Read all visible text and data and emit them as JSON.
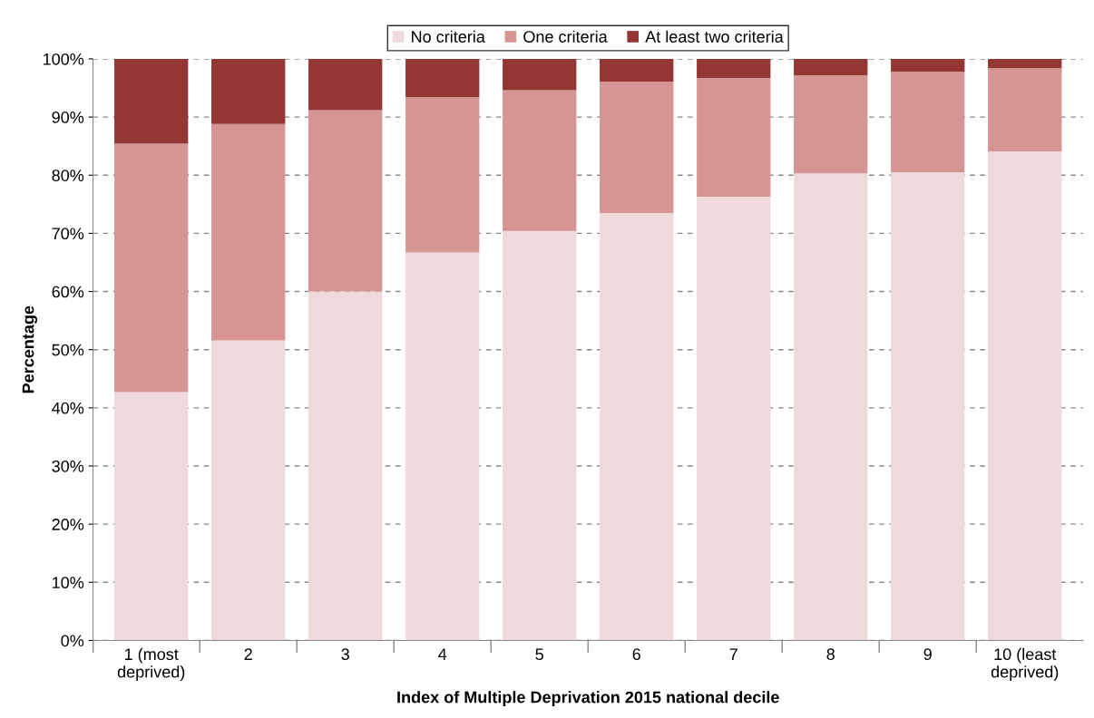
{
  "chart_data": {
    "type": "bar",
    "stacked": true,
    "xlabel": "Index of Multiple Deprivation 2015 national decile",
    "ylabel": "Percentage",
    "categories": [
      "1 (most\ndeprived)",
      "2",
      "3",
      "4",
      "5",
      "6",
      "7",
      "8",
      "9",
      "10 (least\ndeprived)"
    ],
    "series": [
      {
        "name": "No criteria",
        "color": "#f0d9db",
        "values": [
          42.7,
          51.6,
          60.0,
          66.7,
          70.4,
          73.5,
          76.3,
          80.3,
          80.5,
          84.1
        ]
      },
      {
        "name": "One criteria",
        "color": "#d69593",
        "values": [
          42.7,
          37.2,
          31.2,
          26.7,
          24.2,
          22.6,
          20.4,
          16.9,
          17.3,
          14.3
        ]
      },
      {
        "name": "At least two criteria",
        "color": "#943634",
        "values": [
          14.6,
          11.2,
          8.8,
          6.6,
          5.4,
          3.9,
          3.3,
          2.8,
          2.2,
          1.6
        ]
      }
    ],
    "ylim": [
      0,
      100
    ],
    "yticks": [
      {
        "value": 0,
        "label": "0%"
      },
      {
        "value": 10,
        "label": "10%"
      },
      {
        "value": 20,
        "label": "20%"
      },
      {
        "value": 30,
        "label": "30%"
      },
      {
        "value": 40,
        "label": "40%"
      },
      {
        "value": 50,
        "label": "50%"
      },
      {
        "value": 60,
        "label": "60%"
      },
      {
        "value": 70,
        "label": "70%"
      },
      {
        "value": 80,
        "label": "80%"
      },
      {
        "value": 90,
        "label": "90%"
      },
      {
        "value": 100,
        "label": "100%"
      }
    ],
    "grid": "y",
    "legend": "top",
    "line_style": "dashed"
  }
}
